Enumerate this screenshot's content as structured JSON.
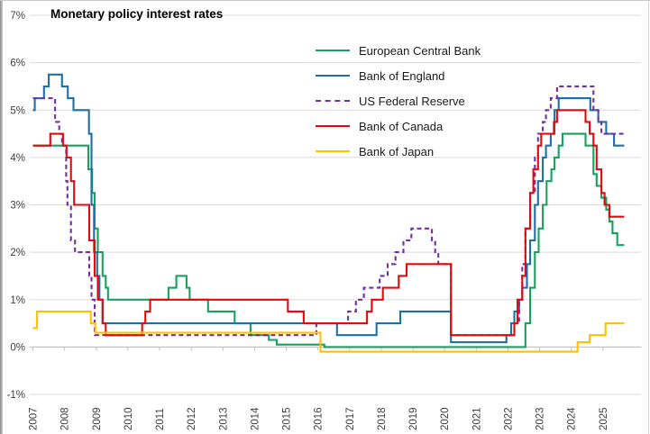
{
  "chart_data": {
    "type": "line",
    "step": "after",
    "title": "Monetary policy interest rates",
    "x_domain": [
      2006.9,
      2026.2
    ],
    "y_domain": [
      -1,
      7
    ],
    "x_end": 2025.67,
    "grid_color": "#D9D9D9",
    "axis_color": "#BFBFBF",
    "legend_position": "top-right-inside",
    "y_ticks": [
      {
        "value": 7,
        "label": "7%"
      },
      {
        "value": 6,
        "label": "6%"
      },
      {
        "value": 5,
        "label": "5%"
      },
      {
        "value": 4,
        "label": "4%"
      },
      {
        "value": 3,
        "label": "3%"
      },
      {
        "value": 2,
        "label": "2%"
      },
      {
        "value": 1,
        "label": "1%"
      },
      {
        "value": 0,
        "label": "0%"
      },
      {
        "value": -1,
        "label": "-1%"
      }
    ],
    "x_ticks": [
      {
        "value": 2007,
        "label": "2007"
      },
      {
        "value": 2008,
        "label": "2008"
      },
      {
        "value": 2009,
        "label": "2009"
      },
      {
        "value": 2010,
        "label": "2010"
      },
      {
        "value": 2011,
        "label": "2011"
      },
      {
        "value": 2012,
        "label": "2012"
      },
      {
        "value": 2013,
        "label": "2013"
      },
      {
        "value": 2014,
        "label": "2014"
      },
      {
        "value": 2015,
        "label": "2015"
      },
      {
        "value": 2016,
        "label": "2016"
      },
      {
        "value": 2017,
        "label": "2017"
      },
      {
        "value": 2018,
        "label": "2018"
      },
      {
        "value": 2019,
        "label": "2019"
      },
      {
        "value": 2020,
        "label": "2020"
      },
      {
        "value": 2021,
        "label": "2021"
      },
      {
        "value": 2022,
        "label": "2022"
      },
      {
        "value": 2023,
        "label": "2023"
      },
      {
        "value": 2024,
        "label": "2024"
      },
      {
        "value": 2025,
        "label": "2025"
      }
    ],
    "series": [
      {
        "name": "European Central Bank",
        "color": "#16A15C",
        "dash": false,
        "points": [
          [
            2007.0,
            4.25
          ],
          [
            2008.75,
            3.75
          ],
          [
            2008.87,
            3.25
          ],
          [
            2008.95,
            2.5
          ],
          [
            2009.05,
            2.0
          ],
          [
            2009.2,
            1.5
          ],
          [
            2009.3,
            1.25
          ],
          [
            2009.37,
            1.0
          ],
          [
            2011.28,
            1.25
          ],
          [
            2011.53,
            1.5
          ],
          [
            2011.85,
            1.25
          ],
          [
            2011.95,
            1.0
          ],
          [
            2012.53,
            0.75
          ],
          [
            2013.37,
            0.5
          ],
          [
            2013.87,
            0.25
          ],
          [
            2014.45,
            0.15
          ],
          [
            2014.7,
            0.05
          ],
          [
            2016.2,
            0.0
          ],
          [
            2022.55,
            0.5
          ],
          [
            2022.7,
            1.25
          ],
          [
            2022.85,
            2.0
          ],
          [
            2022.97,
            2.5
          ],
          [
            2023.1,
            3.0
          ],
          [
            2023.22,
            3.5
          ],
          [
            2023.37,
            3.75
          ],
          [
            2023.47,
            4.0
          ],
          [
            2023.6,
            4.25
          ],
          [
            2023.72,
            4.5
          ],
          [
            2024.45,
            4.25
          ],
          [
            2024.7,
            3.65
          ],
          [
            2024.8,
            3.4
          ],
          [
            2024.95,
            3.15
          ],
          [
            2025.1,
            2.9
          ],
          [
            2025.2,
            2.65
          ],
          [
            2025.3,
            2.4
          ],
          [
            2025.45,
            2.15
          ]
        ]
      },
      {
        "name": "Bank of England",
        "color": "#1E6FA8",
        "dash": false,
        "points": [
          [
            2007.0,
            5.0
          ],
          [
            2007.06,
            5.25
          ],
          [
            2007.35,
            5.5
          ],
          [
            2007.5,
            5.75
          ],
          [
            2007.92,
            5.5
          ],
          [
            2008.1,
            5.25
          ],
          [
            2008.28,
            5.0
          ],
          [
            2008.77,
            4.5
          ],
          [
            2008.85,
            3.0
          ],
          [
            2008.93,
            2.0
          ],
          [
            2009.03,
            1.5
          ],
          [
            2009.1,
            1.0
          ],
          [
            2009.2,
            0.5
          ],
          [
            2016.6,
            0.25
          ],
          [
            2017.85,
            0.5
          ],
          [
            2018.6,
            0.75
          ],
          [
            2020.2,
            0.1
          ],
          [
            2021.95,
            0.25
          ],
          [
            2022.1,
            0.5
          ],
          [
            2022.2,
            0.75
          ],
          [
            2022.35,
            1.0
          ],
          [
            2022.45,
            1.25
          ],
          [
            2022.6,
            1.75
          ],
          [
            2022.7,
            2.25
          ],
          [
            2022.85,
            3.0
          ],
          [
            2022.95,
            3.5
          ],
          [
            2023.1,
            4.0
          ],
          [
            2023.2,
            4.25
          ],
          [
            2023.35,
            4.5
          ],
          [
            2023.47,
            5.0
          ],
          [
            2023.6,
            5.25
          ],
          [
            2024.6,
            5.0
          ],
          [
            2024.85,
            4.75
          ],
          [
            2025.1,
            4.5
          ],
          [
            2025.35,
            4.25
          ]
        ]
      },
      {
        "name": "US Federal Reserve",
        "color": "#7030A0",
        "dash": true,
        "points": [
          [
            2007.0,
            5.25
          ],
          [
            2007.7,
            4.75
          ],
          [
            2007.83,
            4.5
          ],
          [
            2007.92,
            4.25
          ],
          [
            2008.05,
            3.5
          ],
          [
            2008.09,
            3.0
          ],
          [
            2008.2,
            2.25
          ],
          [
            2008.33,
            2.0
          ],
          [
            2008.78,
            1.5
          ],
          [
            2008.85,
            1.0
          ],
          [
            2008.95,
            0.25
          ],
          [
            2015.95,
            0.5
          ],
          [
            2016.95,
            0.75
          ],
          [
            2017.2,
            1.0
          ],
          [
            2017.45,
            1.25
          ],
          [
            2017.95,
            1.5
          ],
          [
            2018.2,
            1.75
          ],
          [
            2018.45,
            2.0
          ],
          [
            2018.7,
            2.25
          ],
          [
            2018.95,
            2.5
          ],
          [
            2019.6,
            2.25
          ],
          [
            2019.7,
            2.0
          ],
          [
            2019.8,
            1.75
          ],
          [
            2020.2,
            0.25
          ],
          [
            2022.2,
            0.5
          ],
          [
            2022.35,
            1.0
          ],
          [
            2022.45,
            1.75
          ],
          [
            2022.55,
            2.5
          ],
          [
            2022.7,
            3.25
          ],
          [
            2022.85,
            4.0
          ],
          [
            2022.95,
            4.5
          ],
          [
            2023.1,
            4.75
          ],
          [
            2023.2,
            5.0
          ],
          [
            2023.35,
            5.25
          ],
          [
            2023.55,
            5.5
          ],
          [
            2024.7,
            5.0
          ],
          [
            2024.85,
            4.75
          ],
          [
            2024.95,
            4.5
          ]
        ]
      },
      {
        "name": "Bank of Canada",
        "color": "#E4090C",
        "dash": false,
        "points": [
          [
            2007.0,
            4.25
          ],
          [
            2007.55,
            4.5
          ],
          [
            2007.95,
            4.25
          ],
          [
            2008.06,
            4.0
          ],
          [
            2008.2,
            3.5
          ],
          [
            2008.3,
            3.0
          ],
          [
            2008.78,
            2.25
          ],
          [
            2008.95,
            1.5
          ],
          [
            2009.05,
            1.0
          ],
          [
            2009.2,
            0.5
          ],
          [
            2009.3,
            0.25
          ],
          [
            2010.45,
            0.5
          ],
          [
            2010.55,
            0.75
          ],
          [
            2010.7,
            1.0
          ],
          [
            2015.05,
            0.75
          ],
          [
            2015.55,
            0.5
          ],
          [
            2017.55,
            0.75
          ],
          [
            2017.7,
            1.0
          ],
          [
            2018.05,
            1.25
          ],
          [
            2018.55,
            1.5
          ],
          [
            2018.8,
            1.75
          ],
          [
            2020.2,
            0.25
          ],
          [
            2022.2,
            0.5
          ],
          [
            2022.3,
            1.0
          ],
          [
            2022.45,
            1.5
          ],
          [
            2022.55,
            2.5
          ],
          [
            2022.7,
            3.25
          ],
          [
            2022.8,
            3.75
          ],
          [
            2022.95,
            4.25
          ],
          [
            2023.05,
            4.5
          ],
          [
            2023.45,
            4.75
          ],
          [
            2023.55,
            5.0
          ],
          [
            2024.45,
            4.75
          ],
          [
            2024.58,
            4.5
          ],
          [
            2024.7,
            4.25
          ],
          [
            2024.8,
            3.75
          ],
          [
            2024.95,
            3.25
          ],
          [
            2025.05,
            3.0
          ],
          [
            2025.2,
            2.75
          ]
        ]
      },
      {
        "name": "Bank of Japan",
        "color": "#FFC000",
        "dash": false,
        "points": [
          [
            2007.0,
            0.4
          ],
          [
            2007.13,
            0.75
          ],
          [
            2008.83,
            0.5
          ],
          [
            2008.97,
            0.3
          ],
          [
            2016.08,
            -0.1
          ],
          [
            2024.2,
            0.1
          ],
          [
            2024.58,
            0.25
          ],
          [
            2025.08,
            0.5
          ]
        ]
      }
    ]
  }
}
